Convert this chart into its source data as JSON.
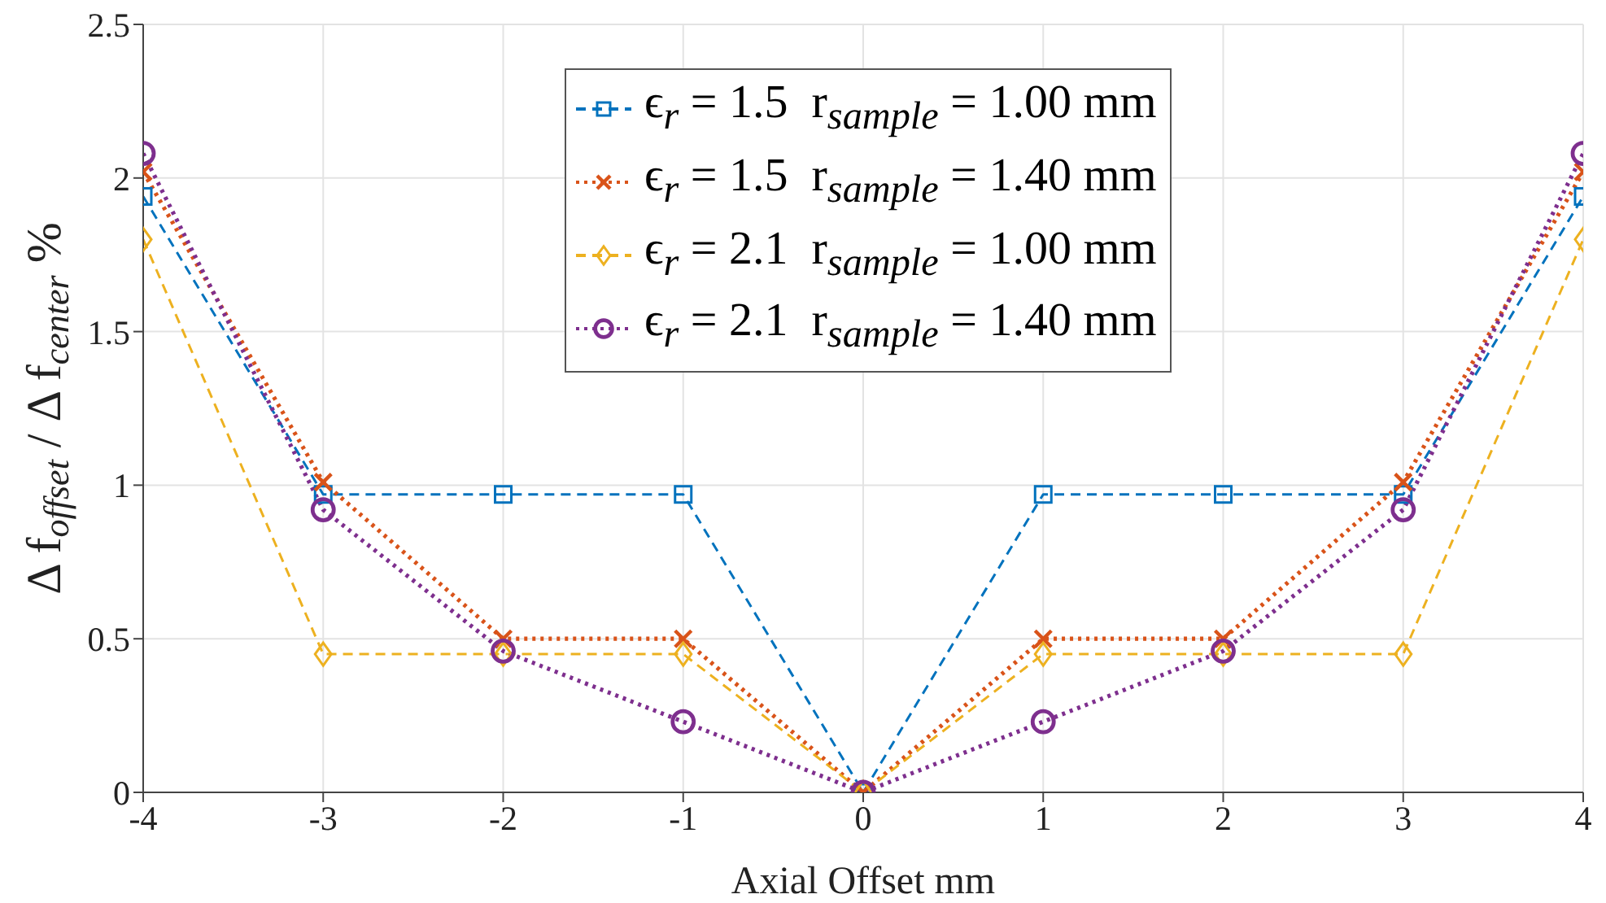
{
  "chart_data": {
    "type": "line",
    "xlabel": "Axial Offset mm",
    "ylabel": "Δ f$_{offset}$ / Δ f$_{center}$ %",
    "x": [
      -4,
      -3,
      -2,
      -1,
      0,
      1,
      2,
      3,
      4
    ],
    "series": [
      {
        "name": "ϵ$_{r}$ = 1.5  r$_{sample}$ = 1.00 mm",
        "color": "#0072bd",
        "marker": "square",
        "line_style": "dashed",
        "values": [
          1.94,
          0.97,
          0.97,
          0.97,
          0,
          0.97,
          0.97,
          0.97,
          1.94
        ]
      },
      {
        "name": "ϵ$_{r}$ = 1.5  r$_{sample}$ = 1.40 mm",
        "color": "#d95319",
        "marker": "cross",
        "line_style": "dotted",
        "values": [
          2.02,
          1.01,
          0.5,
          0.5,
          0,
          0.5,
          0.5,
          1.01,
          2.02
        ]
      },
      {
        "name": "ϵ$_{r}$ = 2.1  r$_{sample}$ = 1.00 mm",
        "color": "#edb120",
        "marker": "diamond",
        "line_style": "dashed",
        "values": [
          1.8,
          0.45,
          0.45,
          0.45,
          0,
          0.45,
          0.45,
          0.45,
          1.8
        ]
      },
      {
        "name": "ϵ$_{r}$ = 2.1  r$_{sample}$ = 1.40 mm",
        "color": "#7e2f8e",
        "marker": "circle",
        "line_style": "dotted",
        "values": [
          2.08,
          0.92,
          0.46,
          0.23,
          0,
          0.23,
          0.46,
          0.92,
          2.08
        ]
      }
    ],
    "xlim": [
      -4,
      4
    ],
    "xticks": [
      -4,
      -3,
      -2,
      -1,
      0,
      1,
      2,
      3,
      4
    ],
    "ylim": [
      0,
      2.5
    ],
    "yticks": [
      0,
      0.5,
      1,
      1.5,
      2,
      2.5
    ],
    "grid": true,
    "legend": "top"
  }
}
